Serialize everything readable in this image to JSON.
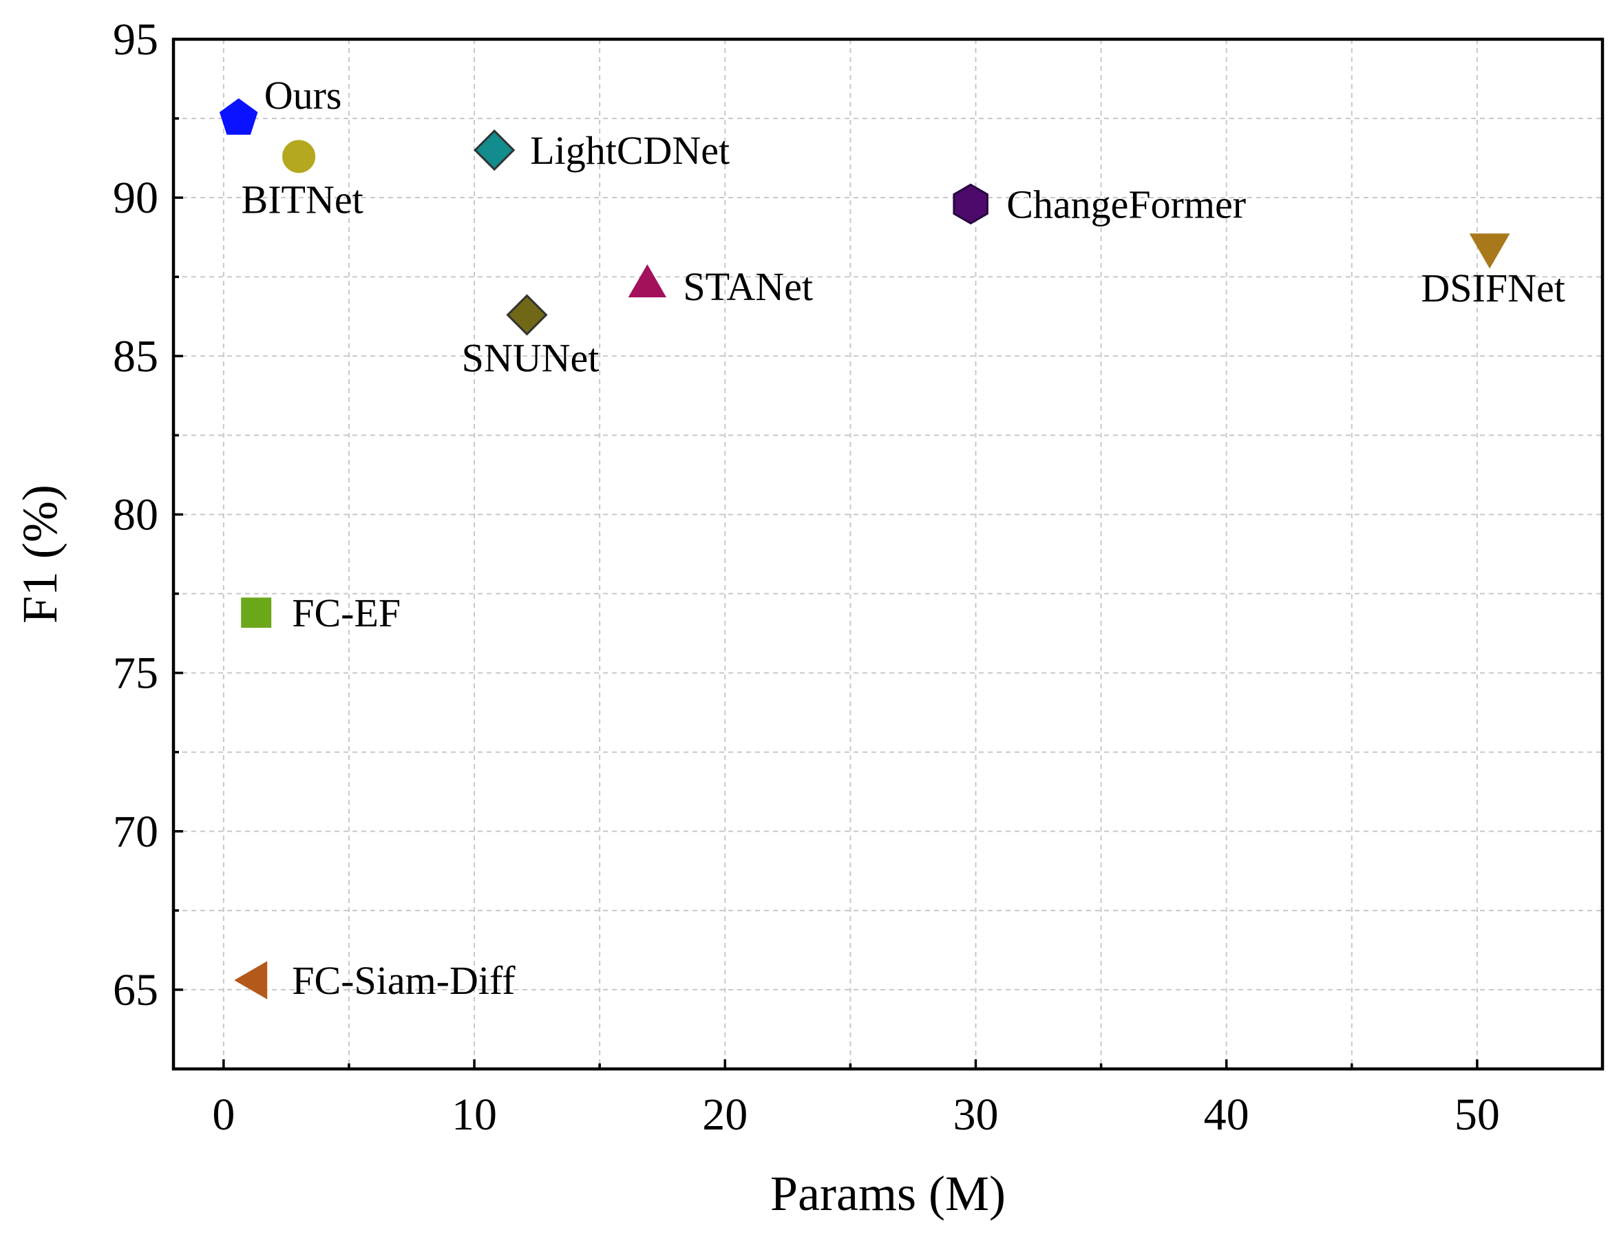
{
  "chart_data": {
    "type": "scatter",
    "title": "",
    "xlabel": "Params (M)",
    "ylabel": "F1 (%)",
    "xlim": [
      -2,
      55
    ],
    "ylim": [
      62.5,
      95
    ],
    "xticks": [
      0,
      10,
      20,
      30,
      40,
      50
    ],
    "yticks": [
      65,
      70,
      75,
      80,
      85,
      90,
      95
    ],
    "grid": true,
    "series": [
      {
        "name": "Ours",
        "x": 0.6,
        "y": 92.5,
        "marker": "pentagon",
        "color": "#0a12ff",
        "label_pos": "upper-right"
      },
      {
        "name": "BITNet",
        "x": 3.0,
        "y": 91.3,
        "marker": "circle",
        "color": "#b3a81f",
        "label_pos": "below"
      },
      {
        "name": "LightCDNet",
        "x": 10.8,
        "y": 91.5,
        "marker": "diamond",
        "color": "#128c8c",
        "label_pos": "right"
      },
      {
        "name": "ChangeFormer",
        "x": 29.8,
        "y": 89.8,
        "marker": "hexagon",
        "color": "#4d0a6b",
        "label_pos": "right"
      },
      {
        "name": "DSIFNet",
        "x": 50.5,
        "y": 88.5,
        "marker": "triangle-down",
        "color": "#a8781a",
        "label_pos": "below"
      },
      {
        "name": "STANet",
        "x": 16.9,
        "y": 87.2,
        "marker": "triangle-up",
        "color": "#a3105c",
        "label_pos": "right"
      },
      {
        "name": "SNUNet",
        "x": 12.1,
        "y": 86.3,
        "marker": "diamond",
        "color": "#706817",
        "label_pos": "below"
      },
      {
        "name": "FC-EF",
        "x": 1.3,
        "y": 76.9,
        "marker": "square",
        "color": "#6aa81a",
        "label_pos": "right"
      },
      {
        "name": "FC-Siam-Diff",
        "x": 1.3,
        "y": 65.3,
        "marker": "triangle-left",
        "color": "#b3591a",
        "label_pos": "right"
      }
    ]
  }
}
